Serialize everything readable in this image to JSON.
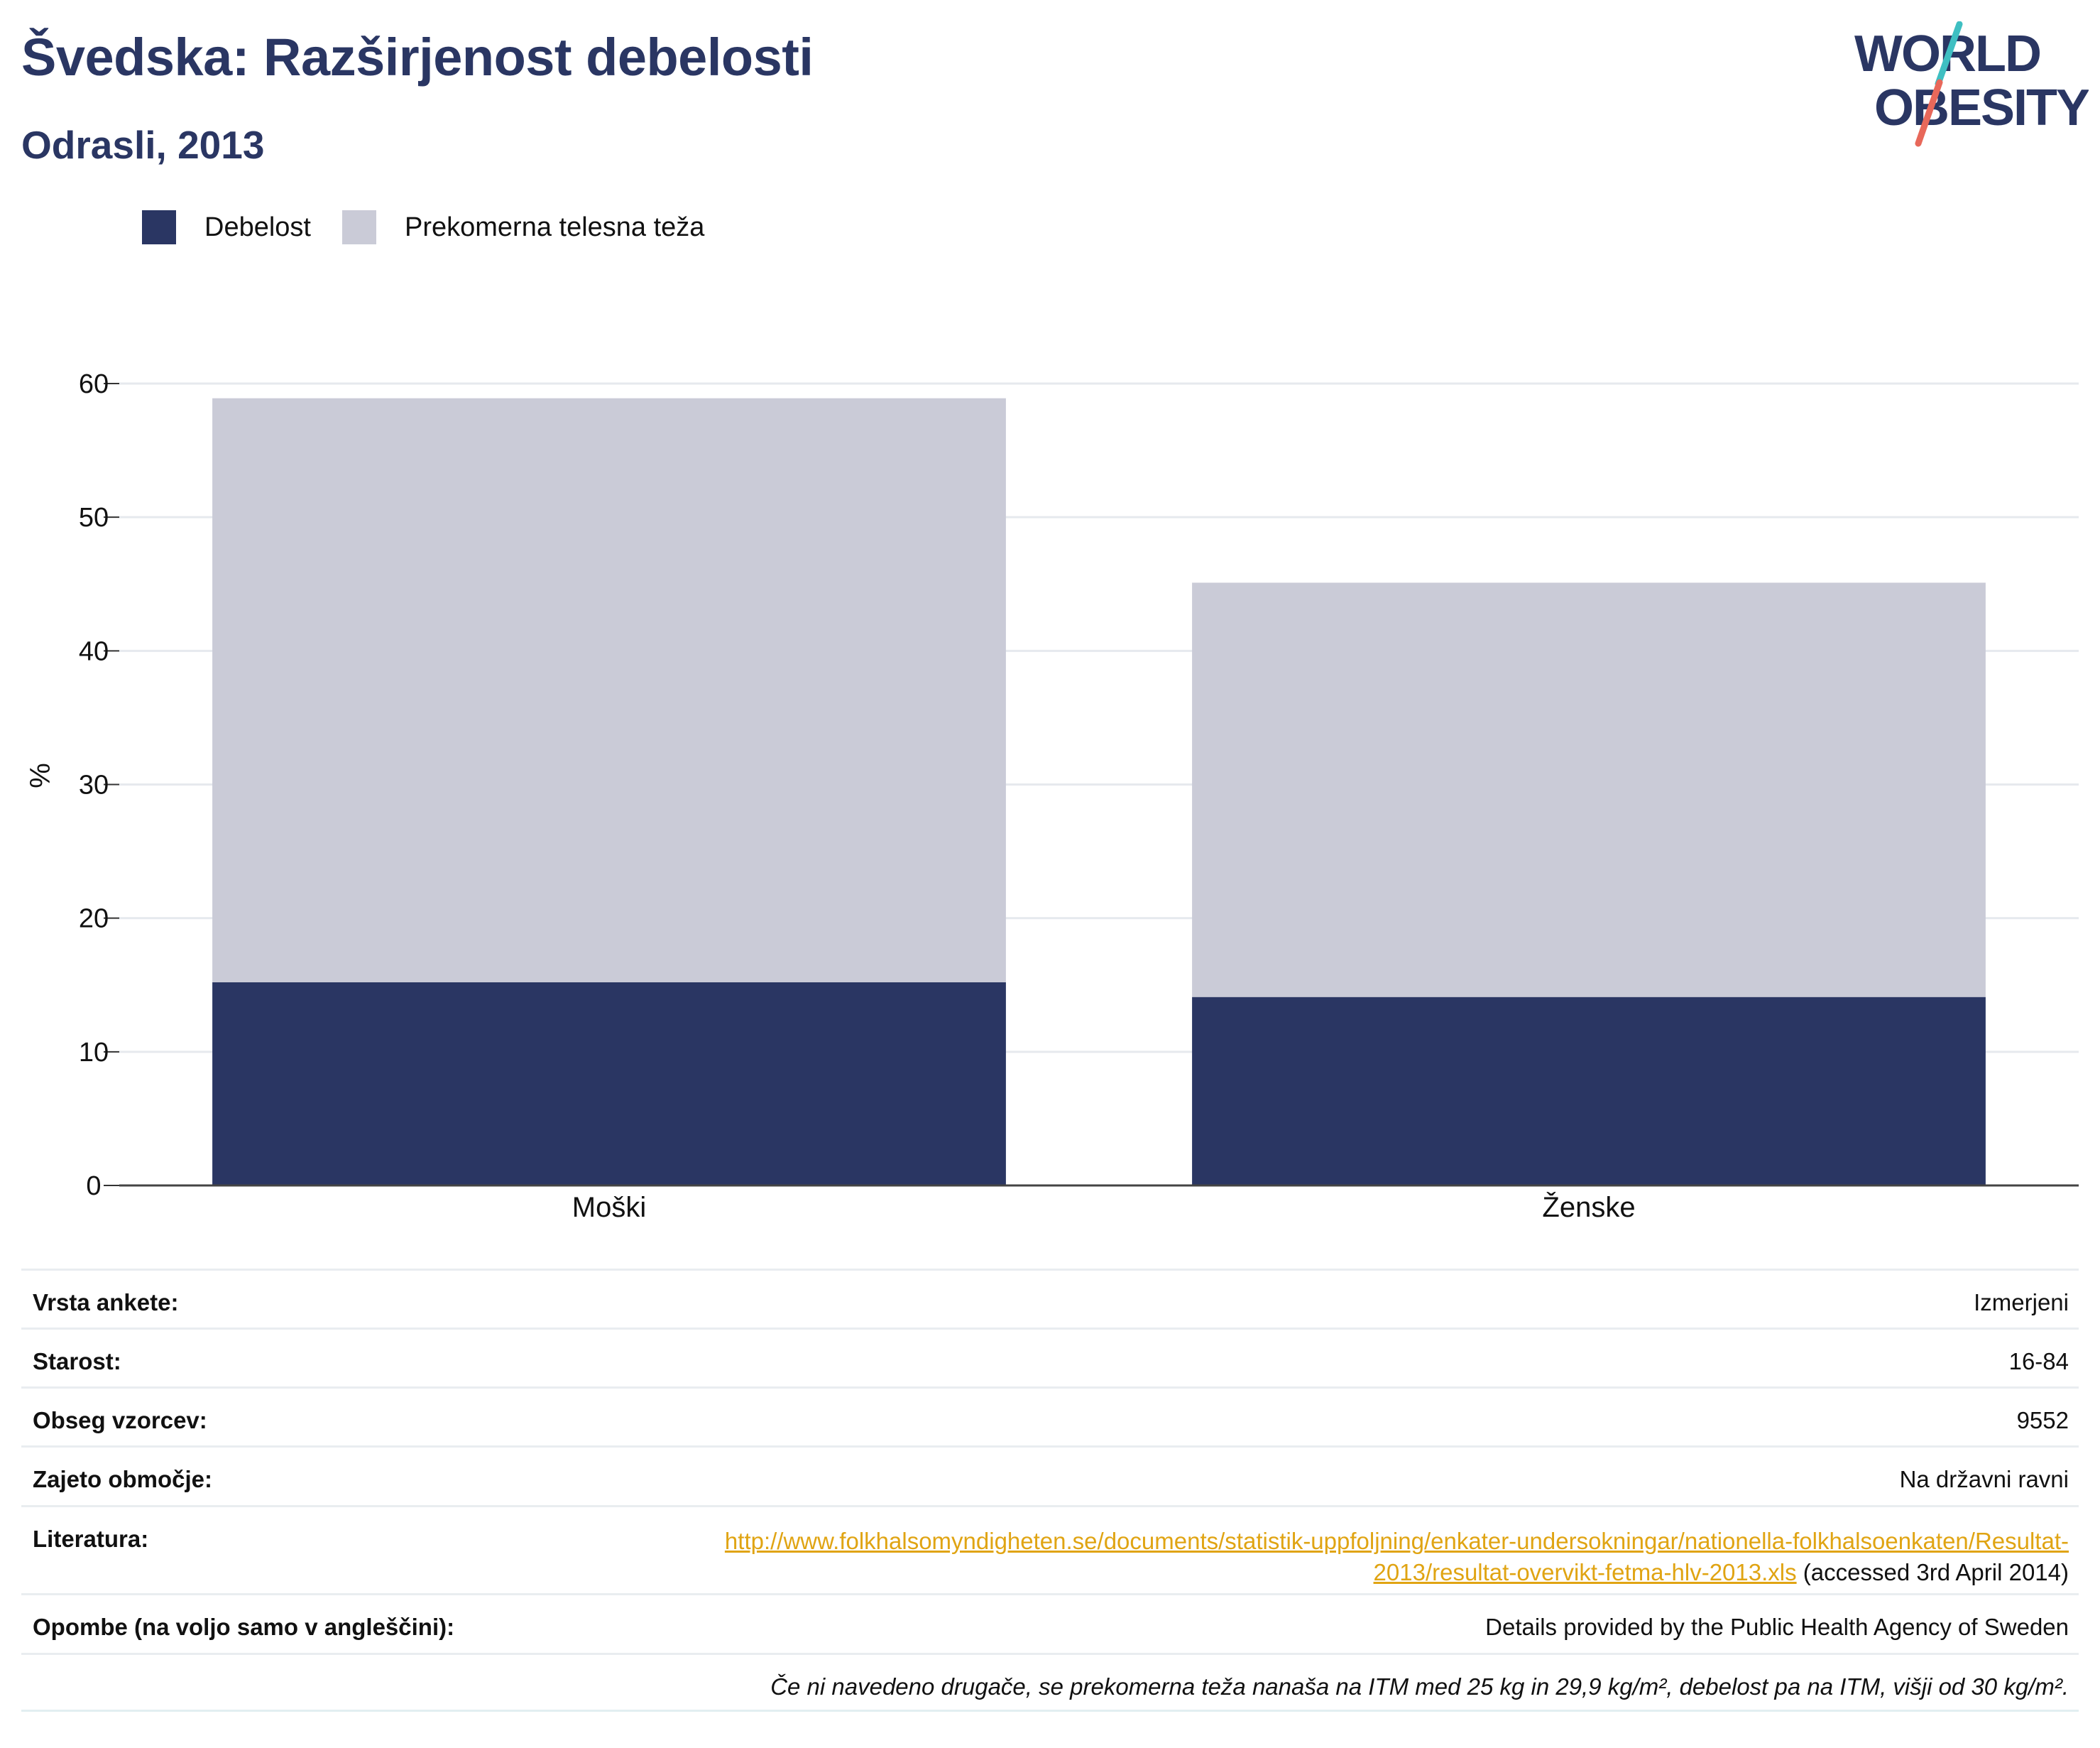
{
  "header": {
    "title": "Švedska: Razširjenost debelosti",
    "subtitle": "Odrasli, 2013"
  },
  "logo": {
    "line1": "WORLD",
    "line2": "OBESITY",
    "colors": {
      "text": "#2a3663",
      "slash_top": "#3fbfc2",
      "slash_bottom": "#e8685a"
    }
  },
  "legend": [
    {
      "label": "Debelost",
      "color": "#2a3663"
    },
    {
      "label": "Prekomerna telesna teža",
      "color": "#cacbd7"
    }
  ],
  "chart_data": {
    "type": "bar",
    "stacked": true,
    "categories": [
      "Moški",
      "Ženske"
    ],
    "series": [
      {
        "name": "Debelost",
        "color": "#2a3663",
        "values": [
          15.2,
          14.1
        ]
      },
      {
        "name": "Prekomerna telesna teža",
        "color": "#cacbd7",
        "values": [
          43.7,
          31.0
        ]
      }
    ],
    "ylabel": "%",
    "ylim": [
      0,
      60
    ],
    "yticks": [
      0,
      10,
      20,
      30,
      40,
      50,
      60
    ],
    "grid": true,
    "legend_position": "top-left"
  },
  "info": {
    "survey_type": {
      "label": "Vrsta ankete:",
      "value": "Izmerjeni"
    },
    "age": {
      "label": "Starost:",
      "value": "16-84"
    },
    "sample_size": {
      "label": "Obseg vzorcev:",
      "value": "9552"
    },
    "area": {
      "label": "Zajeto območje:",
      "value": "Na državni ravni"
    },
    "references": {
      "label": "Literatura:",
      "link_line1": "http://www.folkhalsomyndigheten.se/documents/statistik-uppfoljning/enkater-undersokningar/nationella-folkhalsoenkaten/Resultat-",
      "link_line2": "2013/resultat-overvikt-fetma-hlv-2013.xls",
      "accessed": " (accessed 3rd April 2014)"
    },
    "notes": {
      "label": "Opombe (na voljo samo v angleščini):",
      "value": "Details provided by the Public Health Agency of Sweden"
    },
    "footnote": "Če ni navedeno drugače, se prekomerna teža nanaša na ITM med 25 kg in 29,9 kg/m², debelost pa na ITM, višji od 30 kg/m²."
  }
}
